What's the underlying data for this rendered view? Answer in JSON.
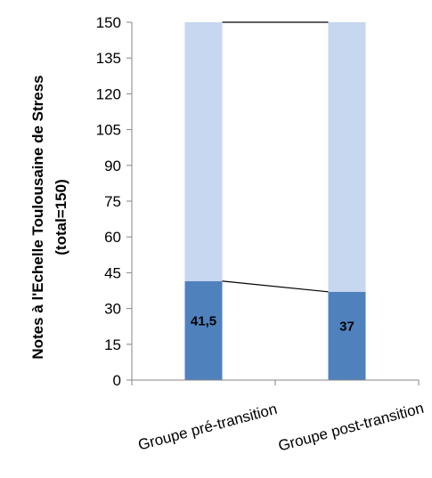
{
  "chart_data": {
    "type": "bar",
    "stacked": true,
    "categories": [
      "Groupe pré-transition",
      "Groupe post-transition"
    ],
    "series": [
      {
        "values": [
          41.5,
          37
        ],
        "color": "#4F81BD",
        "labels": [
          "41,5",
          "37"
        ]
      },
      {
        "values": [
          108.5,
          113
        ],
        "color": "#C6D7EF"
      }
    ],
    "ylabel_line1": "Notes à l'Echelle Toulousaine de Stress",
    "ylabel_line2": "(total=150)",
    "ylim": [
      0,
      150
    ],
    "yticks": [
      "0",
      "15",
      "30",
      "45",
      "60",
      "75",
      "90",
      "105",
      "120",
      "135",
      "150"
    ],
    "ytick_values": [
      0,
      15,
      30,
      45,
      60,
      75,
      90,
      105,
      120,
      135,
      150
    ],
    "series_lines": true,
    "grid": false,
    "legend": "none"
  }
}
